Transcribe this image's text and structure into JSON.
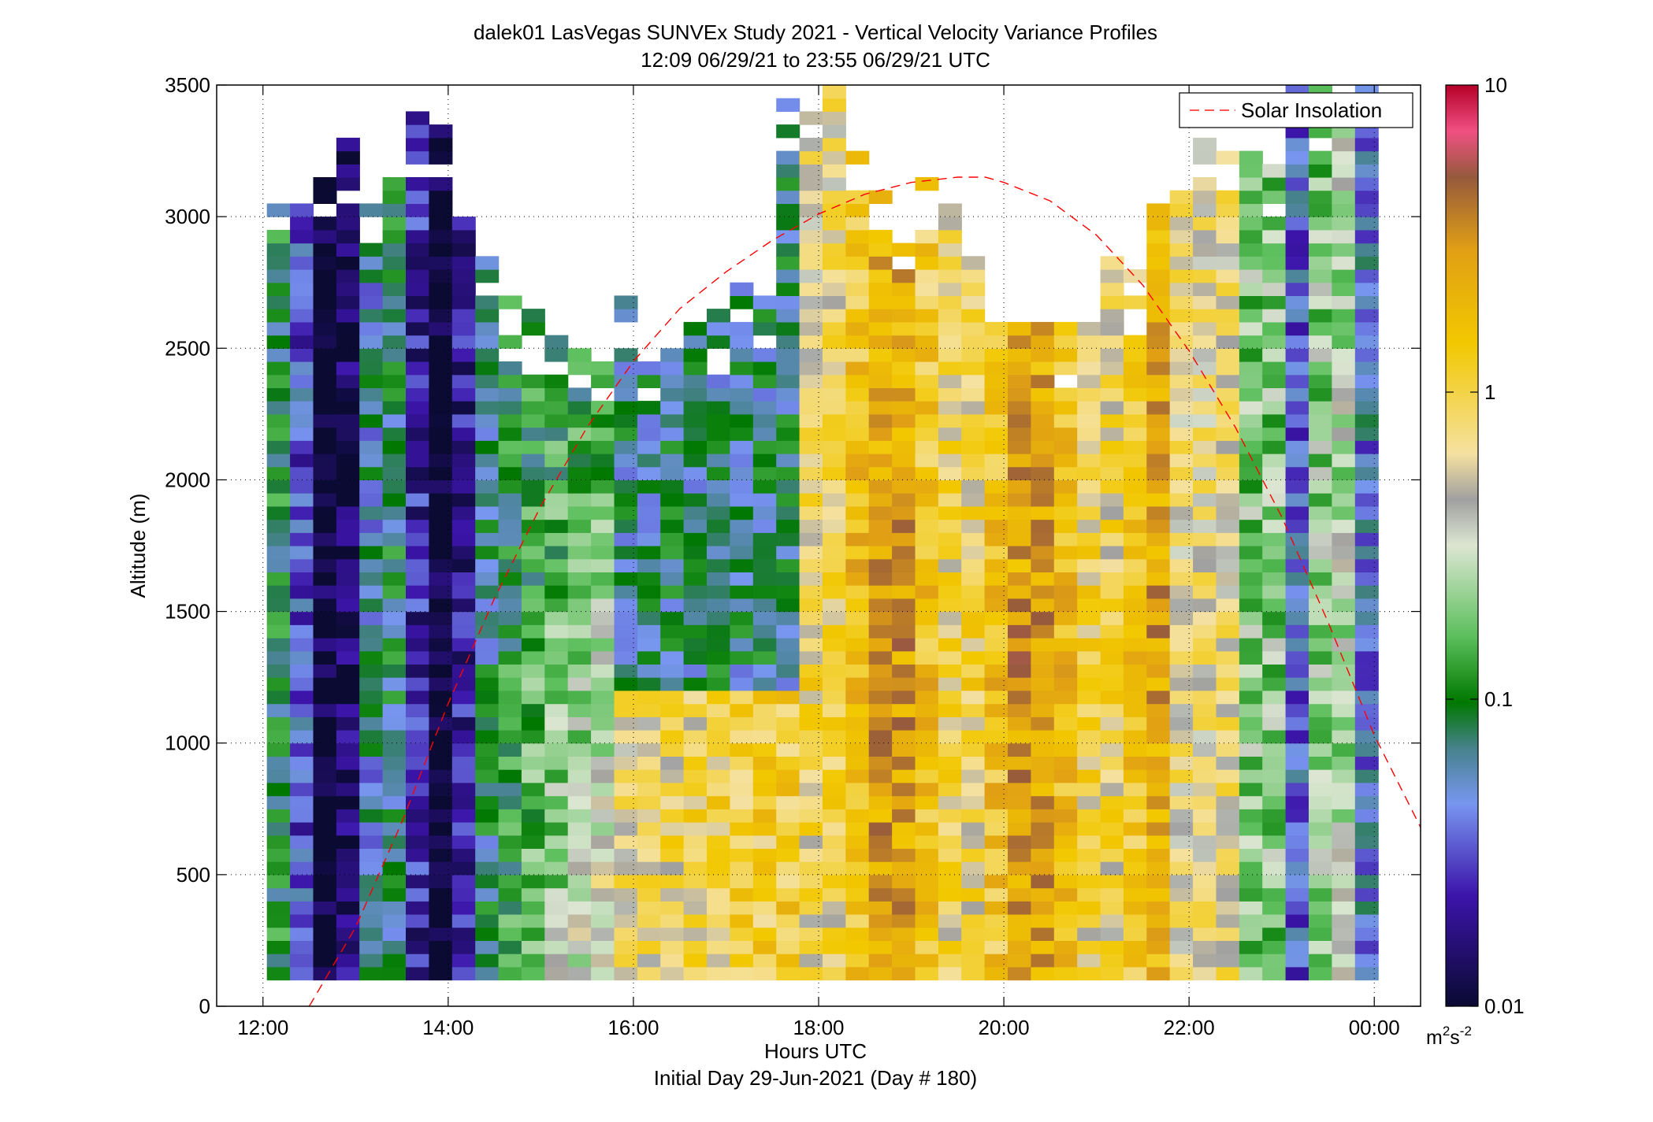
{
  "chart_data": {
    "type": "heatmap",
    "title": "dalek01 LasVegas SUNVEx Study 2021 - Vertical Velocity Variance Profiles",
    "subtitle": "12:09 06/29/21 to 23:55 06/29/21  UTC",
    "xlabel": "Hours UTC",
    "xlabel2": "Initial Day 29-Jun-2021 (Day # 180)",
    "ylabel": "Altitude (m)",
    "xlim": [
      11.5,
      24.5
    ],
    "ylim": [
      0,
      3500
    ],
    "x_ticks": [
      12,
      14,
      16,
      18,
      20,
      22,
      24
    ],
    "x_tick_labels": [
      "12:00",
      "14:00",
      "16:00",
      "18:00",
      "20:00",
      "22:00",
      "00:00"
    ],
    "y_ticks": [
      0,
      500,
      1000,
      1500,
      2000,
      2500,
      3000,
      3500
    ],
    "y_tick_labels": [
      "0",
      "500",
      "1000",
      "1500",
      "2000",
      "2500",
      "3000",
      "3500"
    ],
    "grid": true,
    "legend": {
      "position": "top-right",
      "entries": [
        "Solar Insolation"
      ]
    },
    "colorbar": {
      "scale": "log",
      "range": [
        0.01,
        10
      ],
      "tick_values": [
        0.01,
        0.1,
        1,
        10
      ],
      "tick_labels": [
        "0.01",
        "0.1",
        "1",
        "10"
      ],
      "units_base": "m",
      "units_sup1": "2",
      "units_mid": "s",
      "units_sup2": "-2"
    },
    "grid_spec": {
      "x_start": 12.167,
      "x_step": 0.25,
      "columns": 48,
      "y_start": 100,
      "y_step": 50,
      "rows": 70,
      "variance_unit": "m^2 s^-2"
    },
    "profile_tops_m": [
      3050,
      3000,
      3100,
      3250,
      3100,
      3150,
      3350,
      3300,
      2950,
      2800,
      2650,
      2600,
      2500,
      2500,
      2500,
      2700,
      2500,
      2500,
      2550,
      2600,
      2700,
      2700,
      3400,
      3350,
      3500,
      3300,
      3150,
      2900,
      3100,
      3050,
      2800,
      2550,
      2550,
      2550,
      2550,
      2550,
      2800,
      2750,
      3000,
      3050,
      3350,
      3300,
      3200,
      3150,
      3500,
      3450,
      3350,
      3500
    ],
    "series": [
      {
        "name": "Solar Insolation",
        "style": "dashed",
        "color": "#ff0000",
        "x": [
          12.5,
          13.0,
          13.5,
          14.0,
          14.5,
          15.0,
          15.5,
          16.0,
          16.5,
          17.0,
          17.5,
          18.0,
          18.5,
          19.0,
          19.5,
          19.8,
          20.0,
          20.5,
          21.0,
          21.5,
          22.0,
          22.5,
          23.0,
          23.5,
          24.0,
          24.5
        ],
        "y": [
          0,
          300,
          700,
          1150,
          1550,
          1900,
          2200,
          2450,
          2650,
          2790,
          2910,
          3010,
          3085,
          3130,
          3150,
          3150,
          3130,
          3060,
          2930,
          2740,
          2490,
          2200,
          1860,
          1460,
          1030,
          680
        ]
      }
    ]
  }
}
